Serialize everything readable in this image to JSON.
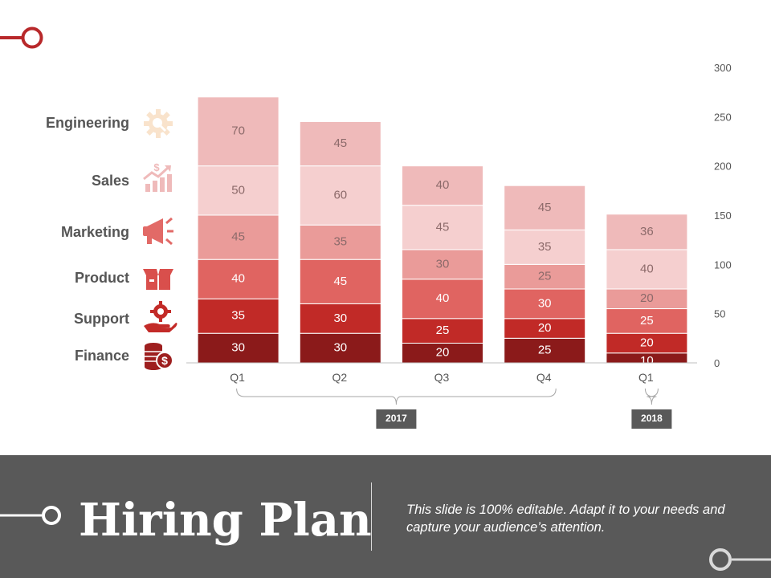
{
  "colors": {
    "finance": "#8b1a1a",
    "support": "#c12a27",
    "product": "#e06461",
    "marketing": "#ea9b99",
    "sales": "#f5cfcf",
    "engineering": "#efbaba",
    "footer_bg": "#595959",
    "year_box": "#595959",
    "accent_red": "#b8282a"
  },
  "departments": [
    {
      "label": "Engineering",
      "icon": "gear-search-icon"
    },
    {
      "label": "Sales",
      "icon": "growth-chart-icon"
    },
    {
      "label": "Marketing",
      "icon": "megaphone-icon"
    },
    {
      "label": "Product",
      "icon": "box-icon"
    },
    {
      "label": "Support",
      "icon": "hand-gear-icon"
    },
    {
      "label": "Finance",
      "icon": "coins-icon"
    }
  ],
  "chart_data": {
    "type": "bar",
    "stacked": true,
    "categories": [
      "Q1",
      "Q2",
      "Q3",
      "Q4",
      "Q1"
    ],
    "groups": [
      {
        "label": "2017",
        "categories": [
          "Q1",
          "Q2",
          "Q3",
          "Q4"
        ]
      },
      {
        "label": "2018",
        "categories": [
          "Q1"
        ]
      }
    ],
    "series": [
      {
        "name": "Finance",
        "values": [
          30,
          30,
          20,
          25,
          10
        ]
      },
      {
        "name": "Support",
        "values": [
          35,
          30,
          25,
          20,
          20
        ]
      },
      {
        "name": "Product",
        "values": [
          40,
          45,
          40,
          30,
          25
        ]
      },
      {
        "name": "Marketing",
        "values": [
          45,
          35,
          30,
          25,
          20
        ]
      },
      {
        "name": "Sales",
        "values": [
          50,
          60,
          45,
          35,
          40
        ]
      },
      {
        "name": "Engineering",
        "values": [
          70,
          45,
          40,
          45,
          36
        ]
      }
    ],
    "y_ticks": [
      0,
      50,
      100,
      150,
      200,
      250,
      300
    ],
    "ylim": [
      0,
      300
    ],
    "y_axis_side": "right",
    "title": "",
    "xlabel": "",
    "ylabel": ""
  },
  "footer": {
    "title": "Hiring Plan",
    "description": "This slide is 100% editable. Adapt it to your needs and capture your audience’s attention."
  }
}
